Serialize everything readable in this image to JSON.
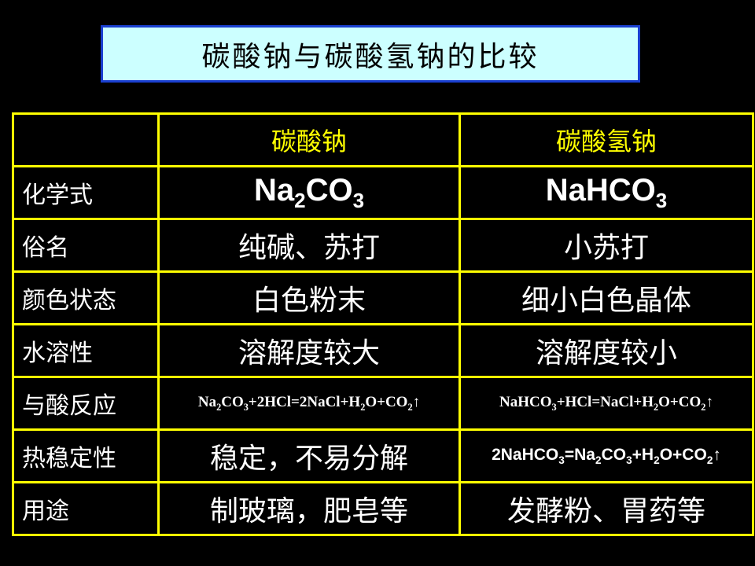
{
  "title": "碳酸钠与碳酸氢钠的比较",
  "colors": {
    "background": "#000000",
    "border": "#ffff00",
    "header_text": "#ffff00",
    "title_bg": "#ccffff",
    "title_border": "#1a3fd0"
  },
  "table": {
    "headers": [
      "",
      "碳酸钠",
      "碳酸氢钠"
    ],
    "rows": [
      {
        "label": "化学式",
        "style": "big",
        "c1": [
          {
            "t": "Na"
          },
          {
            "t": "2",
            "sub": true
          },
          {
            "t": "CO"
          },
          {
            "t": "3",
            "sub": true
          }
        ],
        "c2": [
          {
            "t": "NaHCO"
          },
          {
            "t": "3",
            "sub": true
          }
        ]
      },
      {
        "label": "俗名",
        "style": "zh",
        "c1": [
          {
            "t": "纯碱、苏打"
          }
        ],
        "c2": [
          {
            "t": "小苏打"
          }
        ]
      },
      {
        "label": "颜色状态",
        "style": "zh",
        "c1": [
          {
            "t": "白色粉末"
          }
        ],
        "c2": [
          {
            "t": "细小白色晶体"
          }
        ]
      },
      {
        "label": "水溶性",
        "style": "zh",
        "c1": [
          {
            "t": "溶解度较大"
          }
        ],
        "c2": [
          {
            "t": "溶解度较小"
          }
        ]
      },
      {
        "label": "与酸反应",
        "style": "eqs",
        "c1": [
          {
            "t": "Na"
          },
          {
            "t": "2",
            "sub": true
          },
          {
            "t": "CO"
          },
          {
            "t": "3",
            "sub": true
          },
          {
            "t": "+2HCl=2NaCl+H"
          },
          {
            "t": "2",
            "sub": true
          },
          {
            "t": "O+CO"
          },
          {
            "t": "2",
            "sub": true
          },
          {
            "t": "↑"
          }
        ],
        "c2": [
          {
            "t": "NaHCO"
          },
          {
            "t": "3",
            "sub": true
          },
          {
            "t": "+HCl=NaCl+H"
          },
          {
            "t": "2",
            "sub": true
          },
          {
            "t": "O+CO"
          },
          {
            "t": "2",
            "sub": true
          },
          {
            "t": "↑"
          }
        ]
      },
      {
        "label": "热稳定性",
        "style": "mixed",
        "c1": [
          {
            "t": "稳定，不易分解"
          }
        ],
        "c2": [
          {
            "t": "2NaHCO"
          },
          {
            "t": "3",
            "sub": true
          },
          {
            "t": "=Na"
          },
          {
            "t": "2",
            "sub": true
          },
          {
            "t": "CO"
          },
          {
            "t": "3",
            "sub": true
          },
          {
            "t": "+H"
          },
          {
            "t": "2",
            "sub": true
          },
          {
            "t": "O+CO"
          },
          {
            "t": "2",
            "sub": true
          },
          {
            "t": "↑"
          }
        ]
      },
      {
        "label": "用途",
        "style": "zh",
        "c1": [
          {
            "t": "制玻璃，肥皂等"
          }
        ],
        "c2": [
          {
            "t": "发酵粉、胃药等"
          }
        ]
      }
    ]
  }
}
